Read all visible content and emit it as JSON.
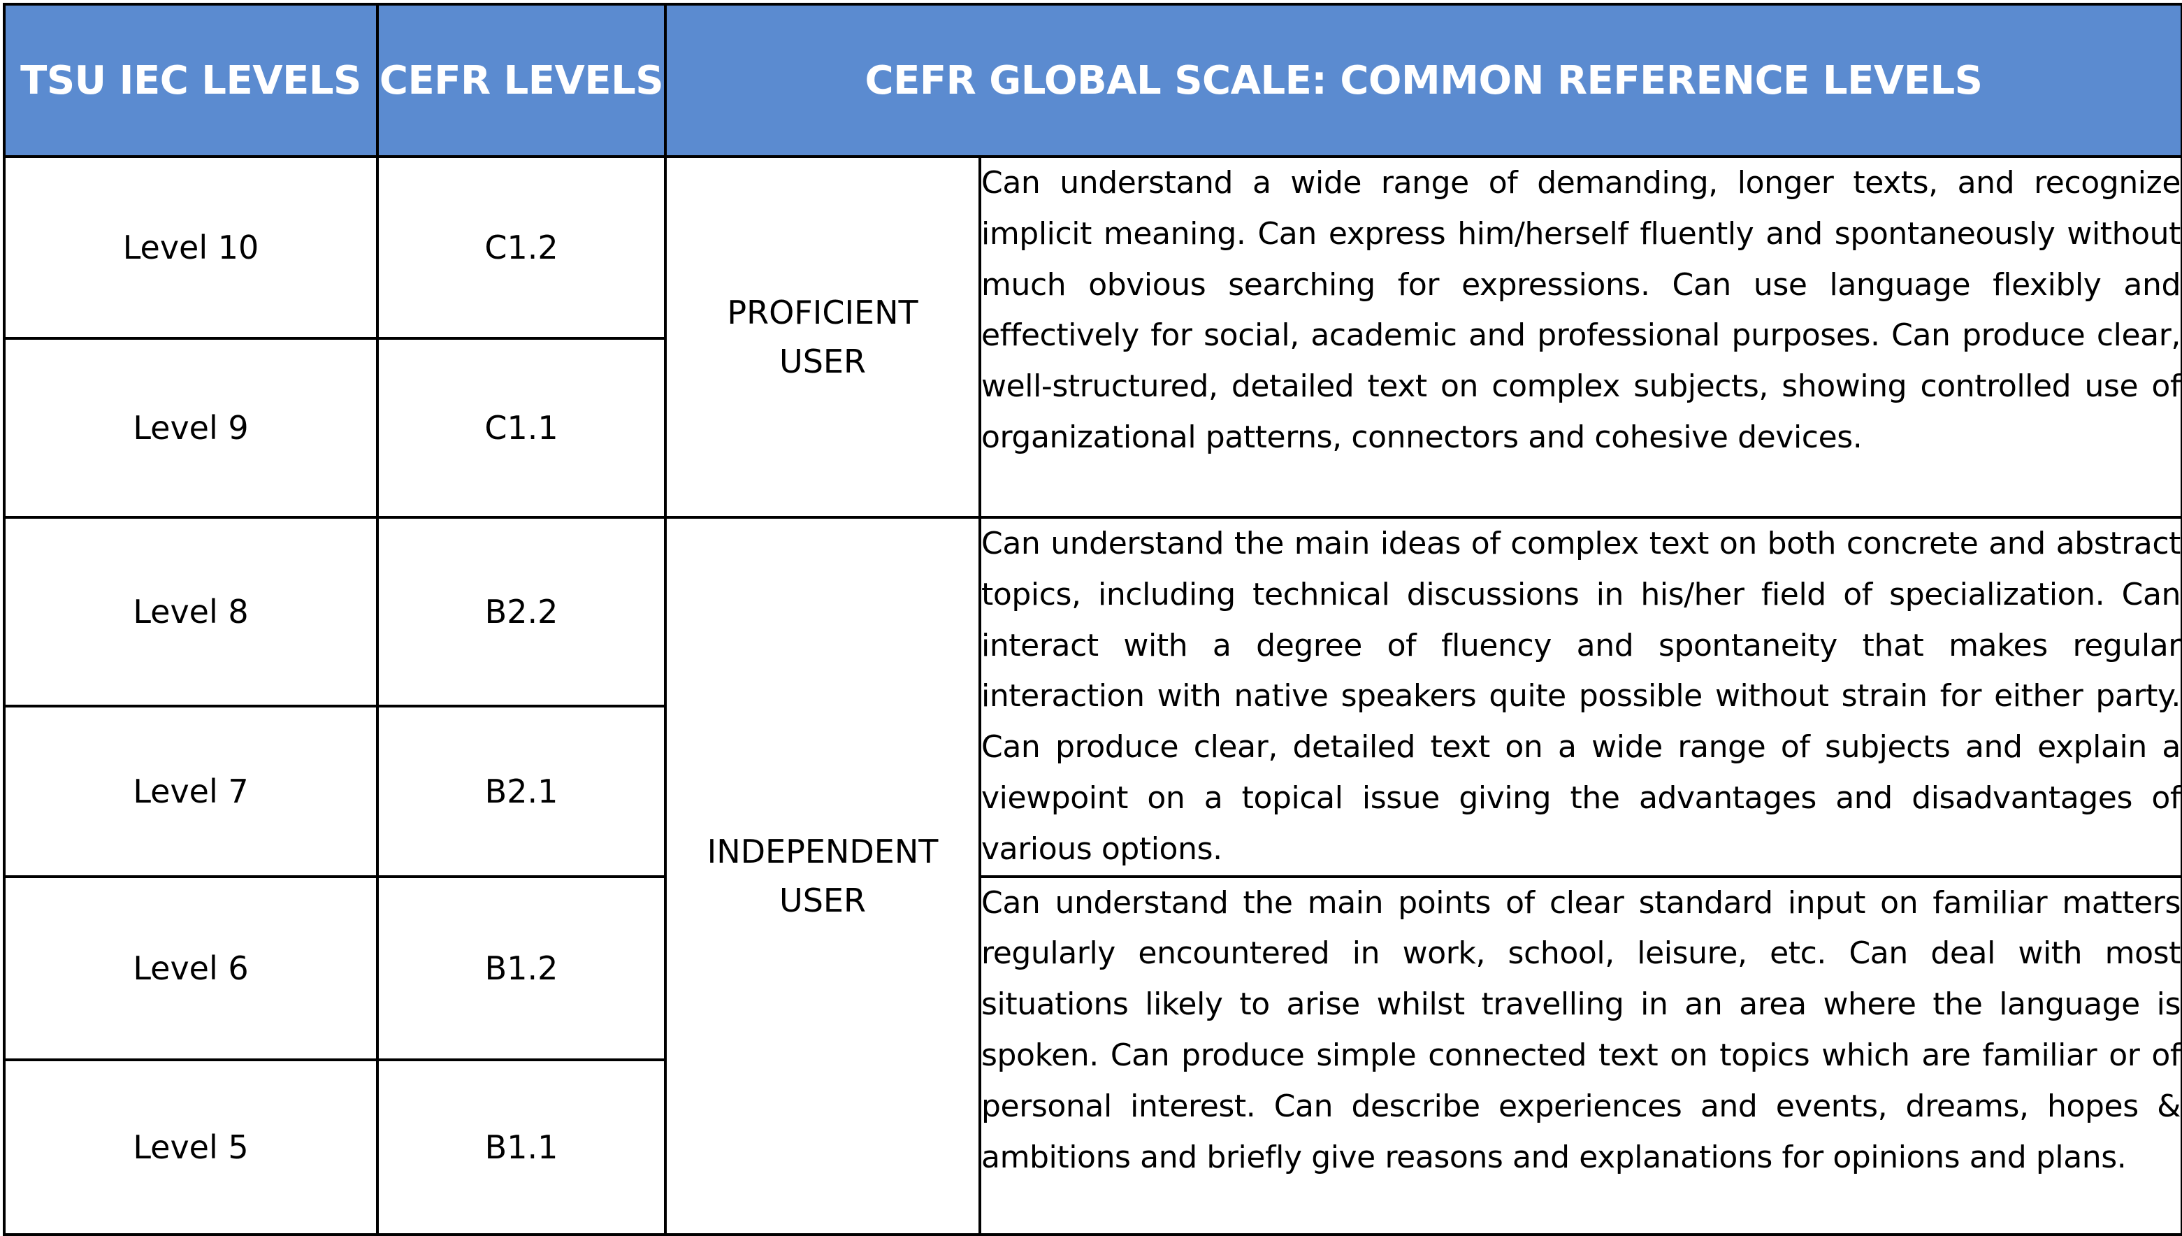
{
  "table": {
    "headers": {
      "tsu_iec_levels": "TSU IEC LEVELS",
      "cefr_levels": "CEFR LEVELS",
      "global_scale": "CEFR GLOBAL SCALE: COMMON REFERENCE LEVELS"
    },
    "rows": [
      {
        "tsu": "Level 10",
        "cefr": "C1.2"
      },
      {
        "tsu": "Level 9",
        "cefr": "C1.1"
      },
      {
        "tsu": "Level 8",
        "cefr": "B2.2"
      },
      {
        "tsu": "Level 7",
        "cefr": "B2.1"
      },
      {
        "tsu": "Level 6",
        "cefr": "B1.2"
      },
      {
        "tsu": "Level 5",
        "cefr": "B1.1"
      }
    ],
    "user_groups": {
      "proficient": "PROFICIENT\nUSER",
      "independent": "INDEPENDENT\nUSER"
    },
    "descriptions": {
      "c1": "Can understand a wide range of demanding, longer texts, and recognize implicit meaning. Can express him/herself fluently and spontaneously without much obvious searching for expressions. Can use language flexibly and effectively for social, academic and professional purposes. Can produce clear, well-structured, detailed text on complex subjects, showing controlled use of organizational patterns, connectors and cohesive devices.",
      "b2": "Can understand the main ideas of complex text on both concrete and abstract topics, including technical discussions in his/her field of specialization. Can interact with a degree of fluency and spontaneity that makes regular interaction with native speakers quite possible without strain for either party. Can produce clear, detailed text on a wide range of subjects and explain a viewpoint on a topical issue giving the advantages and disadvantages of various options.",
      "b1": "Can understand the main points of clear standard input on familiar matters regularly encountered in work, school, leisure, etc. Can deal with most situations likely to arise whilst travelling in an area where the language is spoken.  Can produce simple connected text on topics which are familiar or of personal interest. Can describe experiences and events, dreams, hopes & ambitions and briefly give reasons and explanations for opinions and plans."
    }
  },
  "colors": {
    "header_background": "#5b8bd0",
    "header_text": "#ffffff",
    "border": "#000000"
  }
}
